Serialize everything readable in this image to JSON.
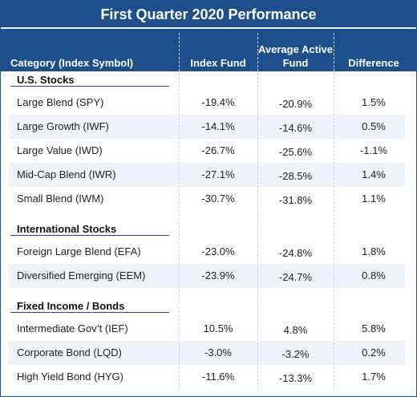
{
  "title": "First Quarter 2020 Performance",
  "table": {
    "columns": [
      "Category (Index Symbol)",
      "Index Fund",
      "Average Active Fund",
      "Difference"
    ],
    "sections": [
      {
        "title": "U.S. Stocks",
        "rows": [
          [
            "Large Blend (SPY)",
            "-19.4%",
            "-20.9%",
            "1.5%"
          ],
          [
            "Large Growth (IWF)",
            "-14.1%",
            "-14.6%",
            "0.5%"
          ],
          [
            "Large Value (IWD)",
            "-26.7%",
            "-25.6%",
            "-1.1%"
          ],
          [
            "Mid-Cap Blend (IWR)",
            "-27.1%",
            "-28.5%",
            "1.4%"
          ],
          [
            "Small Blend (IWM)",
            "-30.7%",
            "-31.8%",
            "1.1%"
          ]
        ]
      },
      {
        "title": "International Stocks",
        "rows": [
          [
            "Foreign Large Blend (EFA)",
            "-23.0%",
            "-24.8%",
            "1.8%"
          ],
          [
            "Diversified Emerging (EEM)",
            "-23.9%",
            "-24.7%",
            "0.8%"
          ]
        ]
      },
      {
        "title": "Fixed Income / Bonds",
        "rows": [
          [
            "Intermediate Gov’t (IEF)",
            "10.5%",
            "4.8%",
            "5.8%"
          ],
          [
            "Corporate Bond (LQD)",
            "-3.0%",
            "-3.2%",
            "0.2%"
          ],
          [
            "High Yield Bond (HYG)",
            "-11.6%",
            "-13.3%",
            "1.7%"
          ]
        ]
      }
    ]
  }
}
